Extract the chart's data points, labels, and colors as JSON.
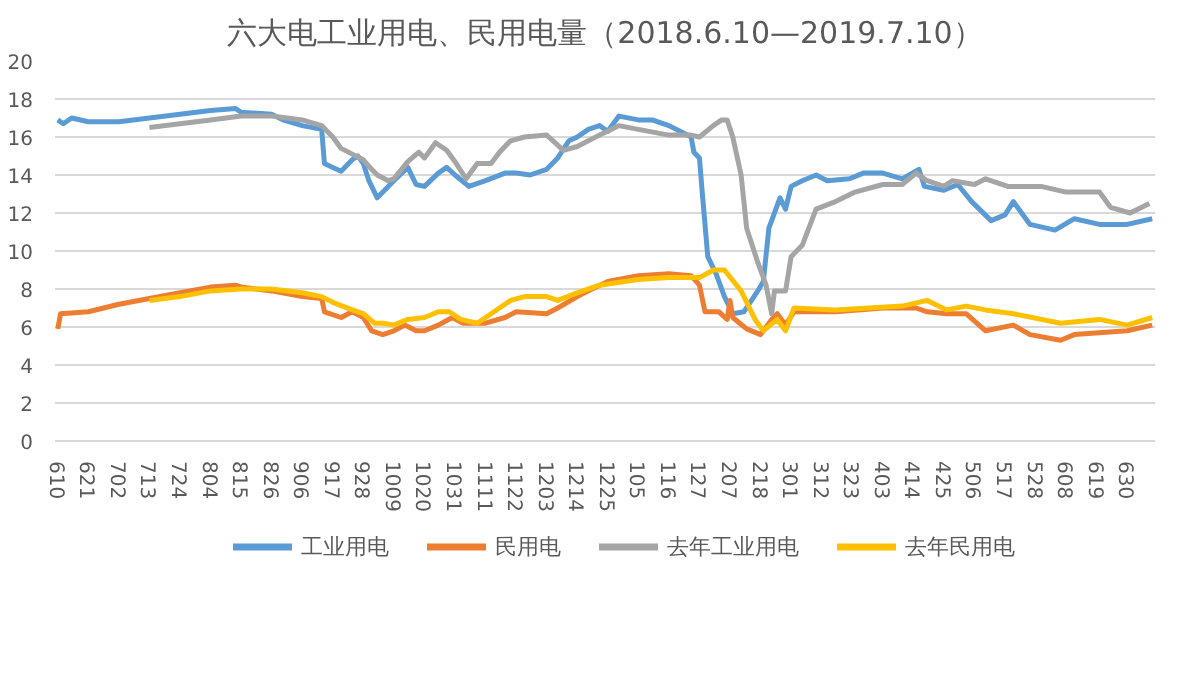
{
  "chart_data": {
    "type": "line",
    "title": "六大电工业用电、民用电量（2018.6.10—2019.7.10）",
    "xlim": [
      "2018-06-09",
      "2019-07-10"
    ],
    "ylim": [
      0,
      20
    ],
    "yticks": [
      0,
      2,
      4,
      6,
      8,
      10,
      12,
      14,
      16,
      18,
      20
    ],
    "xticks": [
      {
        "value": "2018-06-10",
        "label": "610"
      },
      {
        "value": "2018-06-21",
        "label": "621"
      },
      {
        "value": "2018-07-02",
        "label": "702"
      },
      {
        "value": "2018-07-13",
        "label": "713"
      },
      {
        "value": "2018-07-24",
        "label": "724"
      },
      {
        "value": "2018-08-04",
        "label": "804"
      },
      {
        "value": "2018-08-15",
        "label": "815"
      },
      {
        "value": "2018-08-26",
        "label": "826"
      },
      {
        "value": "2018-09-06",
        "label": "906"
      },
      {
        "value": "2018-09-17",
        "label": "917"
      },
      {
        "value": "2018-09-28",
        "label": "928"
      },
      {
        "value": "2018-10-09",
        "label": "1009"
      },
      {
        "value": "2018-10-20",
        "label": "1020"
      },
      {
        "value": "2018-10-31",
        "label": "1031"
      },
      {
        "value": "2018-11-11",
        "label": "1111"
      },
      {
        "value": "2018-11-22",
        "label": "1122"
      },
      {
        "value": "2018-12-03",
        "label": "1203"
      },
      {
        "value": "2018-12-14",
        "label": "1214"
      },
      {
        "value": "2018-12-25",
        "label": "1225"
      },
      {
        "value": "2019-01-05",
        "label": "105"
      },
      {
        "value": "2019-01-16",
        "label": "116"
      },
      {
        "value": "2019-01-27",
        "label": "127"
      },
      {
        "value": "2019-02-07",
        "label": "207"
      },
      {
        "value": "2019-02-18",
        "label": "218"
      },
      {
        "value": "2019-03-01",
        "label": "301"
      },
      {
        "value": "2019-03-12",
        "label": "312"
      },
      {
        "value": "2019-03-23",
        "label": "323"
      },
      {
        "value": "2019-04-03",
        "label": "403"
      },
      {
        "value": "2019-04-14",
        "label": "414"
      },
      {
        "value": "2019-04-25",
        "label": "425"
      },
      {
        "value": "2019-05-06",
        "label": "506"
      },
      {
        "value": "2019-05-17",
        "label": "517"
      },
      {
        "value": "2019-05-28",
        "label": "528"
      },
      {
        "value": "2019-06-08",
        "label": "608"
      },
      {
        "value": "2019-06-19",
        "label": "619"
      },
      {
        "value": "2019-06-30",
        "label": "630"
      }
    ],
    "grid": "y",
    "legend": "bottom",
    "line_style": "solid",
    "series": [
      {
        "name": "工业用电",
        "color": "#5b9bd5",
        "x": [
          "2018-06-10",
          "2018-06-12",
          "2018-06-15",
          "2018-06-21",
          "2018-07-02",
          "2018-07-13",
          "2018-07-24",
          "2018-08-04",
          "2018-08-13",
          "2018-08-15",
          "2018-08-26",
          "2018-08-30",
          "2018-09-06",
          "2018-09-13",
          "2018-09-14",
          "2018-09-17",
          "2018-09-20",
          "2018-09-24",
          "2018-09-26",
          "2018-09-28",
          "2018-09-30",
          "2018-10-03",
          "2018-10-09",
          "2018-10-14",
          "2018-10-17",
          "2018-10-20",
          "2018-10-25",
          "2018-10-28",
          "2018-10-31",
          "2018-11-05",
          "2018-11-11",
          "2018-11-18",
          "2018-11-22",
          "2018-11-27",
          "2018-12-03",
          "2018-12-07",
          "2018-12-11",
          "2018-12-14",
          "2018-12-18",
          "2018-12-22",
          "2018-12-25",
          "2018-12-29",
          "2019-01-05",
          "2019-01-10",
          "2019-01-16",
          "2019-01-20",
          "2019-01-24",
          "2019-01-25",
          "2019-01-27",
          "2019-01-28",
          "2019-01-30",
          "2019-02-02",
          "2019-02-05",
          "2019-02-08",
          "2019-02-12",
          "2019-02-17",
          "2019-02-19",
          "2019-02-21",
          "2019-02-25",
          "2019-02-27",
          "2019-03-01",
          "2019-03-05",
          "2019-03-10",
          "2019-03-14",
          "2019-03-22",
          "2019-03-27",
          "2019-04-03",
          "2019-04-10",
          "2019-04-16",
          "2019-04-18",
          "2019-04-25",
          "2019-04-30",
          "2019-05-05",
          "2019-05-12",
          "2019-05-17",
          "2019-05-20",
          "2019-05-26",
          "2019-06-04",
          "2019-06-11",
          "2019-06-20",
          "2019-06-30",
          "2019-07-09"
        ],
        "values": [
          16.9,
          16.7,
          17.0,
          16.8,
          16.8,
          17.0,
          17.2,
          17.4,
          17.5,
          17.3,
          17.2,
          16.9,
          16.6,
          16.4,
          14.6,
          14.4,
          14.2,
          14.8,
          15.0,
          14.6,
          13.7,
          12.8,
          13.7,
          14.4,
          13.5,
          13.4,
          14.1,
          14.4,
          14.0,
          13.4,
          13.7,
          14.1,
          14.1,
          14.0,
          14.3,
          14.9,
          15.8,
          16.0,
          16.4,
          16.6,
          16.3,
          17.1,
          16.9,
          16.9,
          16.6,
          16.3,
          16.0,
          15.2,
          14.9,
          13.1,
          9.7,
          8.8,
          7.6,
          6.7,
          6.8,
          7.9,
          8.4,
          11.2,
          12.8,
          12.2,
          13.4,
          13.7,
          14.0,
          13.7,
          13.8,
          14.1,
          14.1,
          13.8,
          14.3,
          13.4,
          13.2,
          13.5,
          12.6,
          11.6,
          11.9,
          12.6,
          11.4,
          11.1,
          11.7,
          11.4,
          11.4,
          11.7
        ]
      },
      {
        "name": "民用电",
        "color": "#ed7d31",
        "x": [
          "2018-06-10",
          "2018-06-11",
          "2018-06-21",
          "2018-07-02",
          "2018-07-13",
          "2018-07-24",
          "2018-08-04",
          "2018-08-13",
          "2018-08-15",
          "2018-08-26",
          "2018-09-06",
          "2018-09-13",
          "2018-09-14",
          "2018-09-20",
          "2018-09-24",
          "2018-09-28",
          "2018-10-01",
          "2018-10-05",
          "2018-10-09",
          "2018-10-13",
          "2018-10-17",
          "2018-10-20",
          "2018-10-25",
          "2018-10-30",
          "2018-11-03",
          "2018-11-11",
          "2018-11-18",
          "2018-11-22",
          "2018-12-03",
          "2018-12-07",
          "2018-12-14",
          "2018-12-18",
          "2018-12-25",
          "2019-01-05",
          "2019-01-16",
          "2019-01-24",
          "2019-01-27",
          "2019-01-29",
          "2019-02-03",
          "2019-02-06",
          "2019-02-07",
          "2019-02-08",
          "2019-02-13",
          "2019-02-18",
          "2019-02-22",
          "2019-02-24",
          "2019-02-27",
          "2019-03-02",
          "2019-03-17",
          "2019-04-03",
          "2019-04-15",
          "2019-04-19",
          "2019-04-26",
          "2019-05-03",
          "2019-05-10",
          "2019-05-20",
          "2019-05-26",
          "2019-06-06",
          "2019-06-11",
          "2019-06-30",
          "2019-07-09"
        ],
        "values": [
          5.9,
          6.7,
          6.8,
          7.2,
          7.5,
          7.8,
          8.1,
          8.2,
          8.1,
          7.9,
          7.6,
          7.5,
          6.8,
          6.5,
          6.8,
          6.5,
          5.8,
          5.6,
          5.8,
          6.1,
          5.8,
          5.8,
          6.1,
          6.5,
          6.2,
          6.2,
          6.5,
          6.8,
          6.7,
          7.0,
          7.6,
          7.9,
          8.4,
          8.7,
          8.8,
          8.7,
          8.2,
          6.8,
          6.8,
          6.4,
          7.4,
          6.5,
          5.9,
          5.6,
          6.4,
          6.7,
          6.1,
          6.8,
          6.8,
          7.0,
          7.0,
          6.8,
          6.7,
          6.7,
          5.8,
          6.1,
          5.6,
          5.3,
          5.6,
          5.8,
          6.1
        ]
      },
      {
        "name": "去年工业用电",
        "color": "#a5a5a5",
        "x": [
          "2018-07-13",
          "2018-07-24",
          "2018-08-04",
          "2018-08-15",
          "2018-08-26",
          "2018-09-06",
          "2018-09-13",
          "2018-09-17",
          "2018-09-20",
          "2018-09-24",
          "2018-09-28",
          "2018-10-01",
          "2018-10-03",
          "2018-10-07",
          "2018-10-09",
          "2018-10-14",
          "2018-10-18",
          "2018-10-20",
          "2018-10-24",
          "2018-10-28",
          "2018-10-31",
          "2018-11-04",
          "2018-11-08",
          "2018-11-13",
          "2018-11-16",
          "2018-11-20",
          "2018-11-25",
          "2018-12-03",
          "2018-12-06",
          "2018-12-09",
          "2018-12-14",
          "2018-12-18",
          "2018-12-22",
          "2018-12-25",
          "2018-12-29",
          "2019-01-05",
          "2019-01-16",
          "2019-01-24",
          "2019-01-27",
          "2019-02-01",
          "2019-02-04",
          "2019-02-06",
          "2019-02-08",
          "2019-02-11",
          "2019-02-13",
          "2019-02-17",
          "2019-02-20",
          "2019-02-22",
          "2019-02-23",
          "2019-02-27",
          "2019-03-01",
          "2019-03-05",
          "2019-03-10",
          "2019-03-17",
          "2019-03-24",
          "2019-04-03",
          "2019-04-10",
          "2019-04-15",
          "2019-04-19",
          "2019-04-25",
          "2019-04-28",
          "2019-05-06",
          "2019-05-10",
          "2019-05-18",
          "2019-05-30",
          "2019-06-08",
          "2019-06-20",
          "2019-06-24",
          "2019-07-01",
          "2019-07-08"
        ],
        "values": [
          16.5,
          16.7,
          16.9,
          17.1,
          17.1,
          16.9,
          16.6,
          16.0,
          15.4,
          15.1,
          14.8,
          14.3,
          14.0,
          13.7,
          13.8,
          14.7,
          15.2,
          14.9,
          15.7,
          15.3,
          14.7,
          13.8,
          14.6,
          14.6,
          15.2,
          15.8,
          16.0,
          16.1,
          15.7,
          15.3,
          15.5,
          15.8,
          16.1,
          16.3,
          16.6,
          16.4,
          16.1,
          16.1,
          16.0,
          16.6,
          16.9,
          16.9,
          16.0,
          14.0,
          11.2,
          9.4,
          8.2,
          6.7,
          7.9,
          7.9,
          9.7,
          10.3,
          12.2,
          12.6,
          13.1,
          13.5,
          13.5,
          14.1,
          13.7,
          13.4,
          13.7,
          13.5,
          13.8,
          13.4,
          13.4,
          13.1,
          13.1,
          12.3,
          12.0,
          12.5
        ]
      },
      {
        "name": "去年民用电",
        "color": "#ffc000",
        "x": [
          "2018-07-13",
          "2018-07-24",
          "2018-08-04",
          "2018-08-15",
          "2018-08-26",
          "2018-09-06",
          "2018-09-13",
          "2018-09-17",
          "2018-09-24",
          "2018-09-28",
          "2018-10-02",
          "2018-10-05",
          "2018-10-09",
          "2018-10-14",
          "2018-10-20",
          "2018-10-25",
          "2018-10-29",
          "2018-11-02",
          "2018-11-08",
          "2018-11-13",
          "2018-11-16",
          "2018-11-20",
          "2018-11-25",
          "2018-12-03",
          "2018-12-07",
          "2018-12-14",
          "2018-12-22",
          "2019-01-05",
          "2019-01-16",
          "2019-01-27",
          "2019-02-01",
          "2019-02-05",
          "2019-02-11",
          "2019-02-16",
          "2019-02-19",
          "2019-02-24",
          "2019-02-27",
          "2019-03-02",
          "2019-03-17",
          "2019-04-10",
          "2019-04-19",
          "2019-04-26",
          "2019-05-03",
          "2019-05-10",
          "2019-05-20",
          "2019-06-06",
          "2019-06-20",
          "2019-06-30",
          "2019-07-09"
        ],
        "values": [
          7.4,
          7.6,
          7.9,
          8.0,
          8.0,
          7.8,
          7.6,
          7.3,
          6.9,
          6.7,
          6.2,
          6.2,
          6.1,
          6.4,
          6.5,
          6.8,
          6.8,
          6.4,
          6.2,
          6.7,
          7.0,
          7.4,
          7.6,
          7.6,
          7.4,
          7.8,
          8.2,
          8.5,
          8.6,
          8.6,
          9.0,
          9.0,
          7.9,
          6.4,
          5.8,
          6.4,
          5.8,
          7.0,
          6.9,
          7.1,
          7.4,
          6.9,
          7.1,
          6.9,
          6.7,
          6.2,
          6.4,
          6.1,
          6.5
        ]
      }
    ]
  }
}
